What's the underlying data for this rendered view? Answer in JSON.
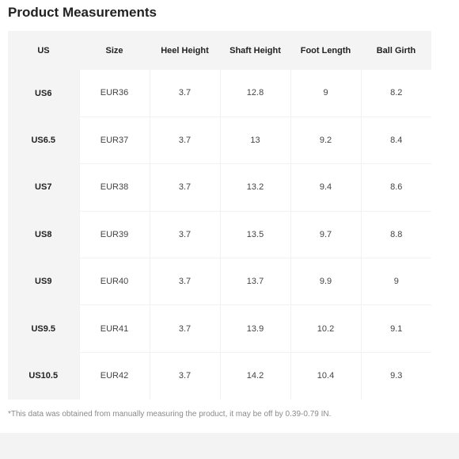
{
  "title": "Product Measurements",
  "table": {
    "headers": [
      "US",
      "Size",
      "Heel Height",
      "Shaft Height",
      "Foot Length",
      "Ball Girth"
    ],
    "rows": [
      {
        "us": "US6",
        "size": "EUR36",
        "heel_height": "3.7",
        "shaft_height": "12.8",
        "foot_length": "9",
        "ball_girth": "8.2"
      },
      {
        "us": "US6.5",
        "size": "EUR37",
        "heel_height": "3.7",
        "shaft_height": "13",
        "foot_length": "9.2",
        "ball_girth": "8.4"
      },
      {
        "us": "US7",
        "size": "EUR38",
        "heel_height": "3.7",
        "shaft_height": "13.2",
        "foot_length": "9.4",
        "ball_girth": "8.6"
      },
      {
        "us": "US8",
        "size": "EUR39",
        "heel_height": "3.7",
        "shaft_height": "13.5",
        "foot_length": "9.7",
        "ball_girth": "8.8"
      },
      {
        "us": "US9",
        "size": "EUR40",
        "heel_height": "3.7",
        "shaft_height": "13.7",
        "foot_length": "9.9",
        "ball_girth": "9"
      },
      {
        "us": "US9.5",
        "size": "EUR41",
        "heel_height": "3.7",
        "shaft_height": "13.9",
        "foot_length": "10.2",
        "ball_girth": "9.1"
      },
      {
        "us": "US10.5",
        "size": "EUR42",
        "heel_height": "3.7",
        "shaft_height": "14.2",
        "foot_length": "10.4",
        "ball_girth": "9.3"
      }
    ]
  },
  "note": "*This data was obtained from manually measuring the product, it may be off by 0.39-0.79 IN.",
  "colors": {
    "header_bg": "#f4f4f4",
    "cell_bg": "#ffffff",
    "grid_line": "#f1f1f1",
    "note_text": "#8a8a8a"
  }
}
